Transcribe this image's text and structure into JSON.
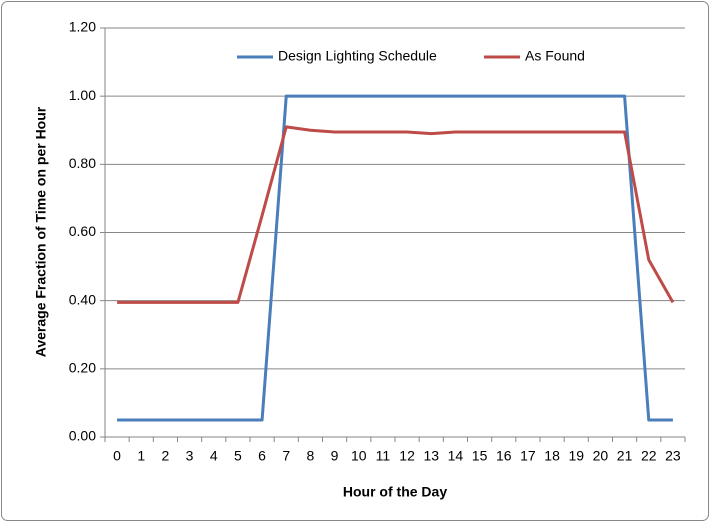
{
  "chart_data": {
    "type": "line",
    "xlabel": "Hour of the Day",
    "ylabel": "Average Fraction of Time on per Hour",
    "categories": [
      "0",
      "1",
      "2",
      "3",
      "4",
      "5",
      "6",
      "7",
      "8",
      "9",
      "10",
      "11",
      "12",
      "13",
      "14",
      "15",
      "16",
      "17",
      "18",
      "19",
      "20",
      "21",
      "22",
      "23"
    ],
    "series": [
      {
        "name": "Design Lighting Schedule",
        "color": "#4a7ebb",
        "values": [
          0.05,
          0.05,
          0.05,
          0.05,
          0.05,
          0.05,
          0.05,
          1.0,
          1.0,
          1.0,
          1.0,
          1.0,
          1.0,
          1.0,
          1.0,
          1.0,
          1.0,
          1.0,
          1.0,
          1.0,
          1.0,
          1.0,
          0.05,
          0.05
        ]
      },
      {
        "name": "As Found",
        "color": "#be4b48",
        "values": [
          0.395,
          0.395,
          0.395,
          0.395,
          0.395,
          0.395,
          0.65,
          0.91,
          0.9,
          0.895,
          0.895,
          0.895,
          0.895,
          0.89,
          0.895,
          0.895,
          0.895,
          0.895,
          0.895,
          0.895,
          0.895,
          0.895,
          0.52,
          0.395
        ]
      }
    ],
    "ylim": [
      0,
      1.2
    ],
    "yticks": [
      {
        "value": 0,
        "label": "0.00"
      },
      {
        "value": 0.2,
        "label": "0.20"
      },
      {
        "value": 0.4,
        "label": "0.40"
      },
      {
        "value": 0.6,
        "label": "0.60"
      },
      {
        "value": 0.8,
        "label": "0.80"
      },
      {
        "value": 1.0,
        "label": "1.00"
      },
      {
        "value": 1.2,
        "label": "1.20"
      }
    ],
    "grid": true,
    "legend": "top"
  }
}
